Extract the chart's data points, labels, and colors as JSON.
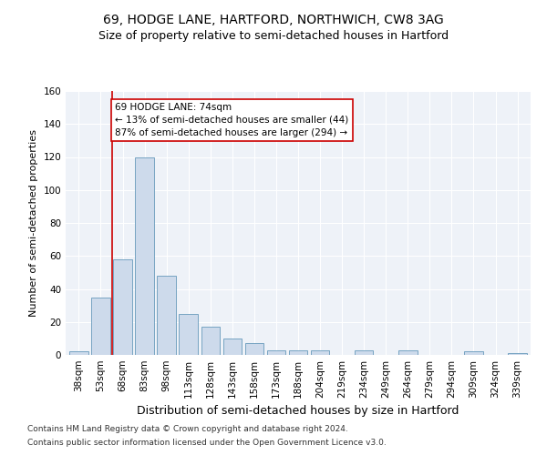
{
  "title": "69, HODGE LANE, HARTFORD, NORTHWICH, CW8 3AG",
  "subtitle": "Size of property relative to semi-detached houses in Hartford",
  "xlabel": "Distribution of semi-detached houses by size in Hartford",
  "ylabel": "Number of semi-detached properties",
  "categories": [
    "38sqm",
    "53sqm",
    "68sqm",
    "83sqm",
    "98sqm",
    "113sqm",
    "128sqm",
    "143sqm",
    "158sqm",
    "173sqm",
    "188sqm",
    "204sqm",
    "219sqm",
    "234sqm",
    "249sqm",
    "264sqm",
    "279sqm",
    "294sqm",
    "309sqm",
    "324sqm",
    "339sqm"
  ],
  "values": [
    2,
    35,
    58,
    120,
    48,
    25,
    17,
    10,
    7,
    3,
    3,
    3,
    0,
    3,
    0,
    3,
    0,
    0,
    2,
    0,
    1
  ],
  "bar_color": "#cddaeb",
  "bar_edgecolor": "#6699bb",
  "vline_x": 1.5,
  "vline_color": "#cc0000",
  "annotation_text": "69 HODGE LANE: 74sqm\n← 13% of semi-detached houses are smaller (44)\n87% of semi-detached houses are larger (294) →",
  "annotation_box_color": "white",
  "annotation_box_edgecolor": "#cc0000",
  "ylim": [
    0,
    160
  ],
  "yticks": [
    0,
    20,
    40,
    60,
    80,
    100,
    120,
    140,
    160
  ],
  "background_color": "#eef2f8",
  "footer1": "Contains HM Land Registry data © Crown copyright and database right 2024.",
  "footer2": "Contains public sector information licensed under the Open Government Licence v3.0.",
  "title_fontsize": 10,
  "subtitle_fontsize": 9,
  "xlabel_fontsize": 9,
  "ylabel_fontsize": 8,
  "tick_fontsize": 7.5,
  "annotation_fontsize": 7.5,
  "footer_fontsize": 6.5
}
